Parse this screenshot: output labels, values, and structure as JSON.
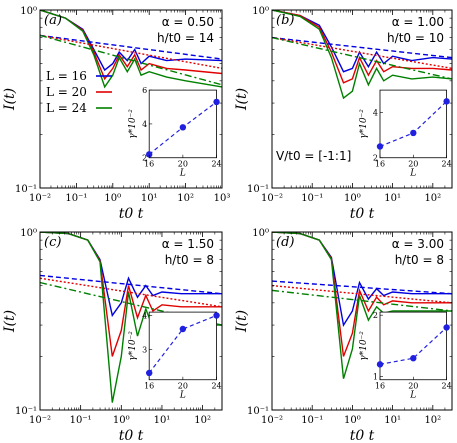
{
  "colors": {
    "L16": "#0000e0",
    "L20": "#e00000",
    "L24": "#008000",
    "inset": "#2020e0"
  },
  "chart_data": [
    {
      "type": "line",
      "panel_label": "(a)",
      "alpha_text": "α = 0.50",
      "h_text": "h/t0 = 14",
      "alpha": 0.5,
      "h_over_t0": 14,
      "xlabel": "t0 t",
      "ylabel": "I(t)",
      "xscale": "log",
      "yscale": "log",
      "xlim": [
        0.01,
        1000
      ],
      "ylim": [
        0.1,
        1
      ],
      "x_ticks": [
        "10⁻²",
        "10⁻¹",
        "10⁰",
        "10¹",
        "10²",
        "10³"
      ],
      "y_ticks": [
        "10⁻¹",
        "10⁰"
      ],
      "legend": [
        "L = 16",
        "L = 20",
        "L = 24"
      ],
      "series": [
        {
          "name": "L = 16",
          "x": [
            0.01,
            0.05,
            0.15,
            0.3,
            0.6,
            1.0,
            1.5,
            2.5,
            4,
            6,
            10,
            30,
            100,
            1000
          ],
          "y": [
            1.0,
            0.9,
            0.78,
            0.6,
            0.46,
            0.5,
            0.58,
            0.52,
            0.6,
            0.5,
            0.55,
            0.52,
            0.53,
            0.52
          ]
        },
        {
          "name": "L = 20",
          "x": [
            0.01,
            0.05,
            0.15,
            0.3,
            0.6,
            1.0,
            1.5,
            2.5,
            4,
            6,
            10,
            30,
            100,
            1000
          ],
          "y": [
            1.0,
            0.9,
            0.77,
            0.58,
            0.41,
            0.47,
            0.56,
            0.48,
            0.56,
            0.46,
            0.5,
            0.47,
            0.46,
            0.44
          ]
        },
        {
          "name": "L = 24",
          "x": [
            0.01,
            0.05,
            0.15,
            0.3,
            0.6,
            1.0,
            1.5,
            2.5,
            4,
            6,
            10,
            30,
            100,
            1000
          ],
          "y": [
            1.0,
            0.9,
            0.76,
            0.56,
            0.37,
            0.43,
            0.54,
            0.45,
            0.53,
            0.43,
            0.45,
            0.42,
            0.4,
            0.37
          ]
        }
      ],
      "fits": [
        {
          "x": [
            0.01,
            1000
          ],
          "y": [
            0.72,
            0.53
          ]
        },
        {
          "x": [
            0.01,
            1000
          ],
          "y": [
            0.72,
            0.47
          ]
        },
        {
          "x": [
            0.01,
            1000
          ],
          "y": [
            0.72,
            0.38
          ]
        }
      ],
      "inset": {
        "xlabel": "L",
        "ylabel": "γ*10⁻²",
        "x": [
          16,
          20,
          24
        ],
        "y": [
          2.2,
          3.8,
          5.3
        ],
        "x_ticks": [
          16,
          20,
          24
        ],
        "y_ticks": [
          2,
          4,
          6
        ],
        "ylim": [
          2,
          6
        ]
      }
    },
    {
      "type": "line",
      "panel_label": "(b)",
      "alpha_text": "α = 1.00",
      "h_text": "h/t0 = 10",
      "extra_text": "V/t0 = [-1:1]",
      "alpha": 1.0,
      "h_over_t0": 10,
      "xlabel": "t0 t",
      "ylabel": "I(t)",
      "xscale": "log",
      "yscale": "log",
      "xlim": [
        0.01,
        300
      ],
      "ylim": [
        0.1,
        1
      ],
      "x_ticks": [
        "10⁻²",
        "10⁻¹",
        "10⁰",
        "10¹",
        "10²"
      ],
      "y_ticks": [
        "10⁻¹",
        "10⁰"
      ],
      "series": [
        {
          "name": "L = 16",
          "x": [
            0.01,
            0.05,
            0.15,
            0.3,
            0.6,
            1.0,
            1.5,
            2.5,
            4,
            6,
            10,
            30,
            100,
            300
          ],
          "y": [
            1.0,
            0.93,
            0.82,
            0.62,
            0.45,
            0.47,
            0.58,
            0.48,
            0.58,
            0.5,
            0.55,
            0.52,
            0.54,
            0.53
          ]
        },
        {
          "name": "L = 20",
          "x": [
            0.01,
            0.05,
            0.15,
            0.3,
            0.6,
            1.0,
            1.5,
            2.5,
            4,
            6,
            10,
            30,
            100,
            300
          ],
          "y": [
            1.0,
            0.93,
            0.8,
            0.58,
            0.39,
            0.41,
            0.54,
            0.43,
            0.52,
            0.45,
            0.48,
            0.47,
            0.47,
            0.46
          ]
        },
        {
          "name": "L = 24",
          "x": [
            0.01,
            0.05,
            0.15,
            0.3,
            0.6,
            1.0,
            1.5,
            2.5,
            4,
            6,
            10,
            30,
            100,
            300
          ],
          "y": [
            1.0,
            0.92,
            0.78,
            0.54,
            0.32,
            0.35,
            0.5,
            0.38,
            0.47,
            0.4,
            0.43,
            0.41,
            0.42,
            0.41
          ]
        }
      ],
      "fits": [
        {
          "x": [
            0.01,
            300
          ],
          "y": [
            0.7,
            0.54
          ]
        },
        {
          "x": [
            0.01,
            300
          ],
          "y": [
            0.7,
            0.47
          ]
        },
        {
          "x": [
            0.01,
            300
          ],
          "y": [
            0.7,
            0.41
          ]
        }
      ],
      "inset": {
        "xlabel": "L",
        "ylabel": "γ*10⁻²",
        "x": [
          16,
          20,
          24
        ],
        "y": [
          2.5,
          3.1,
          4.5
        ],
        "x_ticks": [
          16,
          20,
          24
        ],
        "y_ticks": [
          2,
          4
        ],
        "ylim": [
          2,
          5
        ]
      }
    },
    {
      "type": "line",
      "panel_label": "(c)",
      "alpha_text": "α = 1.50",
      "h_text": "h/t0 = 8",
      "alpha": 1.5,
      "h_over_t0": 8,
      "xlabel": "t0 t",
      "ylabel": "I(t)",
      "xscale": "log",
      "yscale": "log",
      "xlim": [
        0.01,
        300
      ],
      "ylim": [
        0.1,
        1
      ],
      "x_ticks": [
        "10⁻²",
        "10⁻¹",
        "10⁰",
        "10¹",
        "10²"
      ],
      "y_ticks": [
        "10⁻¹",
        "10⁰"
      ],
      "series": [
        {
          "name": "L = 16",
          "x": [
            0.01,
            0.05,
            0.15,
            0.3,
            0.6,
            1.0,
            1.5,
            2.5,
            4,
            6,
            10,
            30,
            100,
            300
          ],
          "y": [
            1.0,
            0.98,
            0.9,
            0.7,
            0.34,
            0.4,
            0.55,
            0.43,
            0.5,
            0.44,
            0.46,
            0.45,
            0.45,
            0.45
          ]
        },
        {
          "name": "L = 20",
          "x": [
            0.01,
            0.05,
            0.15,
            0.3,
            0.6,
            1.0,
            1.5,
            2.5,
            4,
            6,
            10,
            30,
            100,
            300
          ],
          "y": [
            1.0,
            0.98,
            0.9,
            0.69,
            0.2,
            0.28,
            0.5,
            0.33,
            0.44,
            0.36,
            0.39,
            0.38,
            0.38,
            0.38
          ]
        },
        {
          "name": "L = 24",
          "x": [
            0.01,
            0.05,
            0.15,
            0.3,
            0.6,
            1.0,
            1.5,
            2.5,
            4,
            6,
            10,
            30,
            100,
            300
          ],
          "y": [
            1.0,
            0.98,
            0.9,
            0.68,
            0.11,
            0.2,
            0.46,
            0.26,
            0.37,
            0.29,
            0.32,
            0.3,
            0.3,
            0.3
          ]
        }
      ],
      "fits": [
        {
          "x": [
            0.01,
            300
          ],
          "y": [
            0.57,
            0.45
          ]
        },
        {
          "x": [
            0.01,
            300
          ],
          "y": [
            0.55,
            0.38
          ]
        },
        {
          "x": [
            0.01,
            300
          ],
          "y": [
            0.52,
            0.3
          ]
        }
      ],
      "inset": {
        "xlabel": "L",
        "ylabel": "γ*10⁻²",
        "x": [
          16,
          20,
          24
        ],
        "y": [
          2.3,
          3.6,
          4.0
        ],
        "x_ticks": [
          16,
          20,
          24
        ],
        "y_ticks": [
          3,
          4
        ],
        "ylim": [
          2.1,
          4.1
        ]
      }
    },
    {
      "type": "line",
      "panel_label": "(d)",
      "alpha_text": "α = 3.00",
      "h_text": "h/t0 = 8",
      "alpha": 3.0,
      "h_over_t0": 8,
      "xlabel": "t0 t",
      "ylabel": "I(t)",
      "xscale": "log",
      "yscale": "log",
      "xlim": [
        0.01,
        300
      ],
      "ylim": [
        0.1,
        1
      ],
      "x_ticks": [
        "10⁻²",
        "10⁻¹",
        "10⁰",
        "10¹",
        "10²"
      ],
      "y_ticks": [
        "10⁻¹",
        "10⁰"
      ],
      "series": [
        {
          "name": "L = 16",
          "x": [
            0.01,
            0.05,
            0.15,
            0.3,
            0.6,
            1.0,
            1.5,
            2.5,
            4,
            6,
            10,
            30,
            100,
            300
          ],
          "y": [
            1.0,
            0.98,
            0.9,
            0.72,
            0.3,
            0.36,
            0.52,
            0.42,
            0.48,
            0.44,
            0.46,
            0.45,
            0.45,
            0.45
          ]
        },
        {
          "name": "L = 20",
          "x": [
            0.01,
            0.05,
            0.15,
            0.3,
            0.6,
            1.0,
            1.5,
            2.5,
            4,
            6,
            10,
            30,
            100,
            300
          ],
          "y": [
            1.0,
            0.98,
            0.9,
            0.71,
            0.2,
            0.27,
            0.47,
            0.36,
            0.43,
            0.39,
            0.41,
            0.4,
            0.4,
            0.4
          ]
        },
        {
          "name": "L = 24",
          "x": [
            0.01,
            0.05,
            0.15,
            0.3,
            0.6,
            1.0,
            1.5,
            2.5,
            4,
            6,
            10,
            30,
            100,
            300
          ],
          "y": [
            1.0,
            0.98,
            0.9,
            0.7,
            0.15,
            0.22,
            0.44,
            0.32,
            0.38,
            0.35,
            0.36,
            0.36,
            0.36,
            0.36
          ]
        }
      ],
      "fits": [
        {
          "x": [
            0.01,
            300
          ],
          "y": [
            0.53,
            0.45
          ]
        },
        {
          "x": [
            0.01,
            300
          ],
          "y": [
            0.5,
            0.4
          ]
        },
        {
          "x": [
            0.01,
            300
          ],
          "y": [
            0.47,
            0.36
          ]
        }
      ],
      "inset": {
        "xlabel": "L",
        "ylabel": "γ*10⁻²",
        "x": [
          16,
          20,
          24
        ],
        "y": [
          1.2,
          1.3,
          1.8
        ],
        "x_ticks": [
          16,
          20,
          24
        ],
        "y_ticks": [
          1,
          2
        ],
        "ylim": [
          0.95,
          2.05
        ]
      }
    }
  ]
}
